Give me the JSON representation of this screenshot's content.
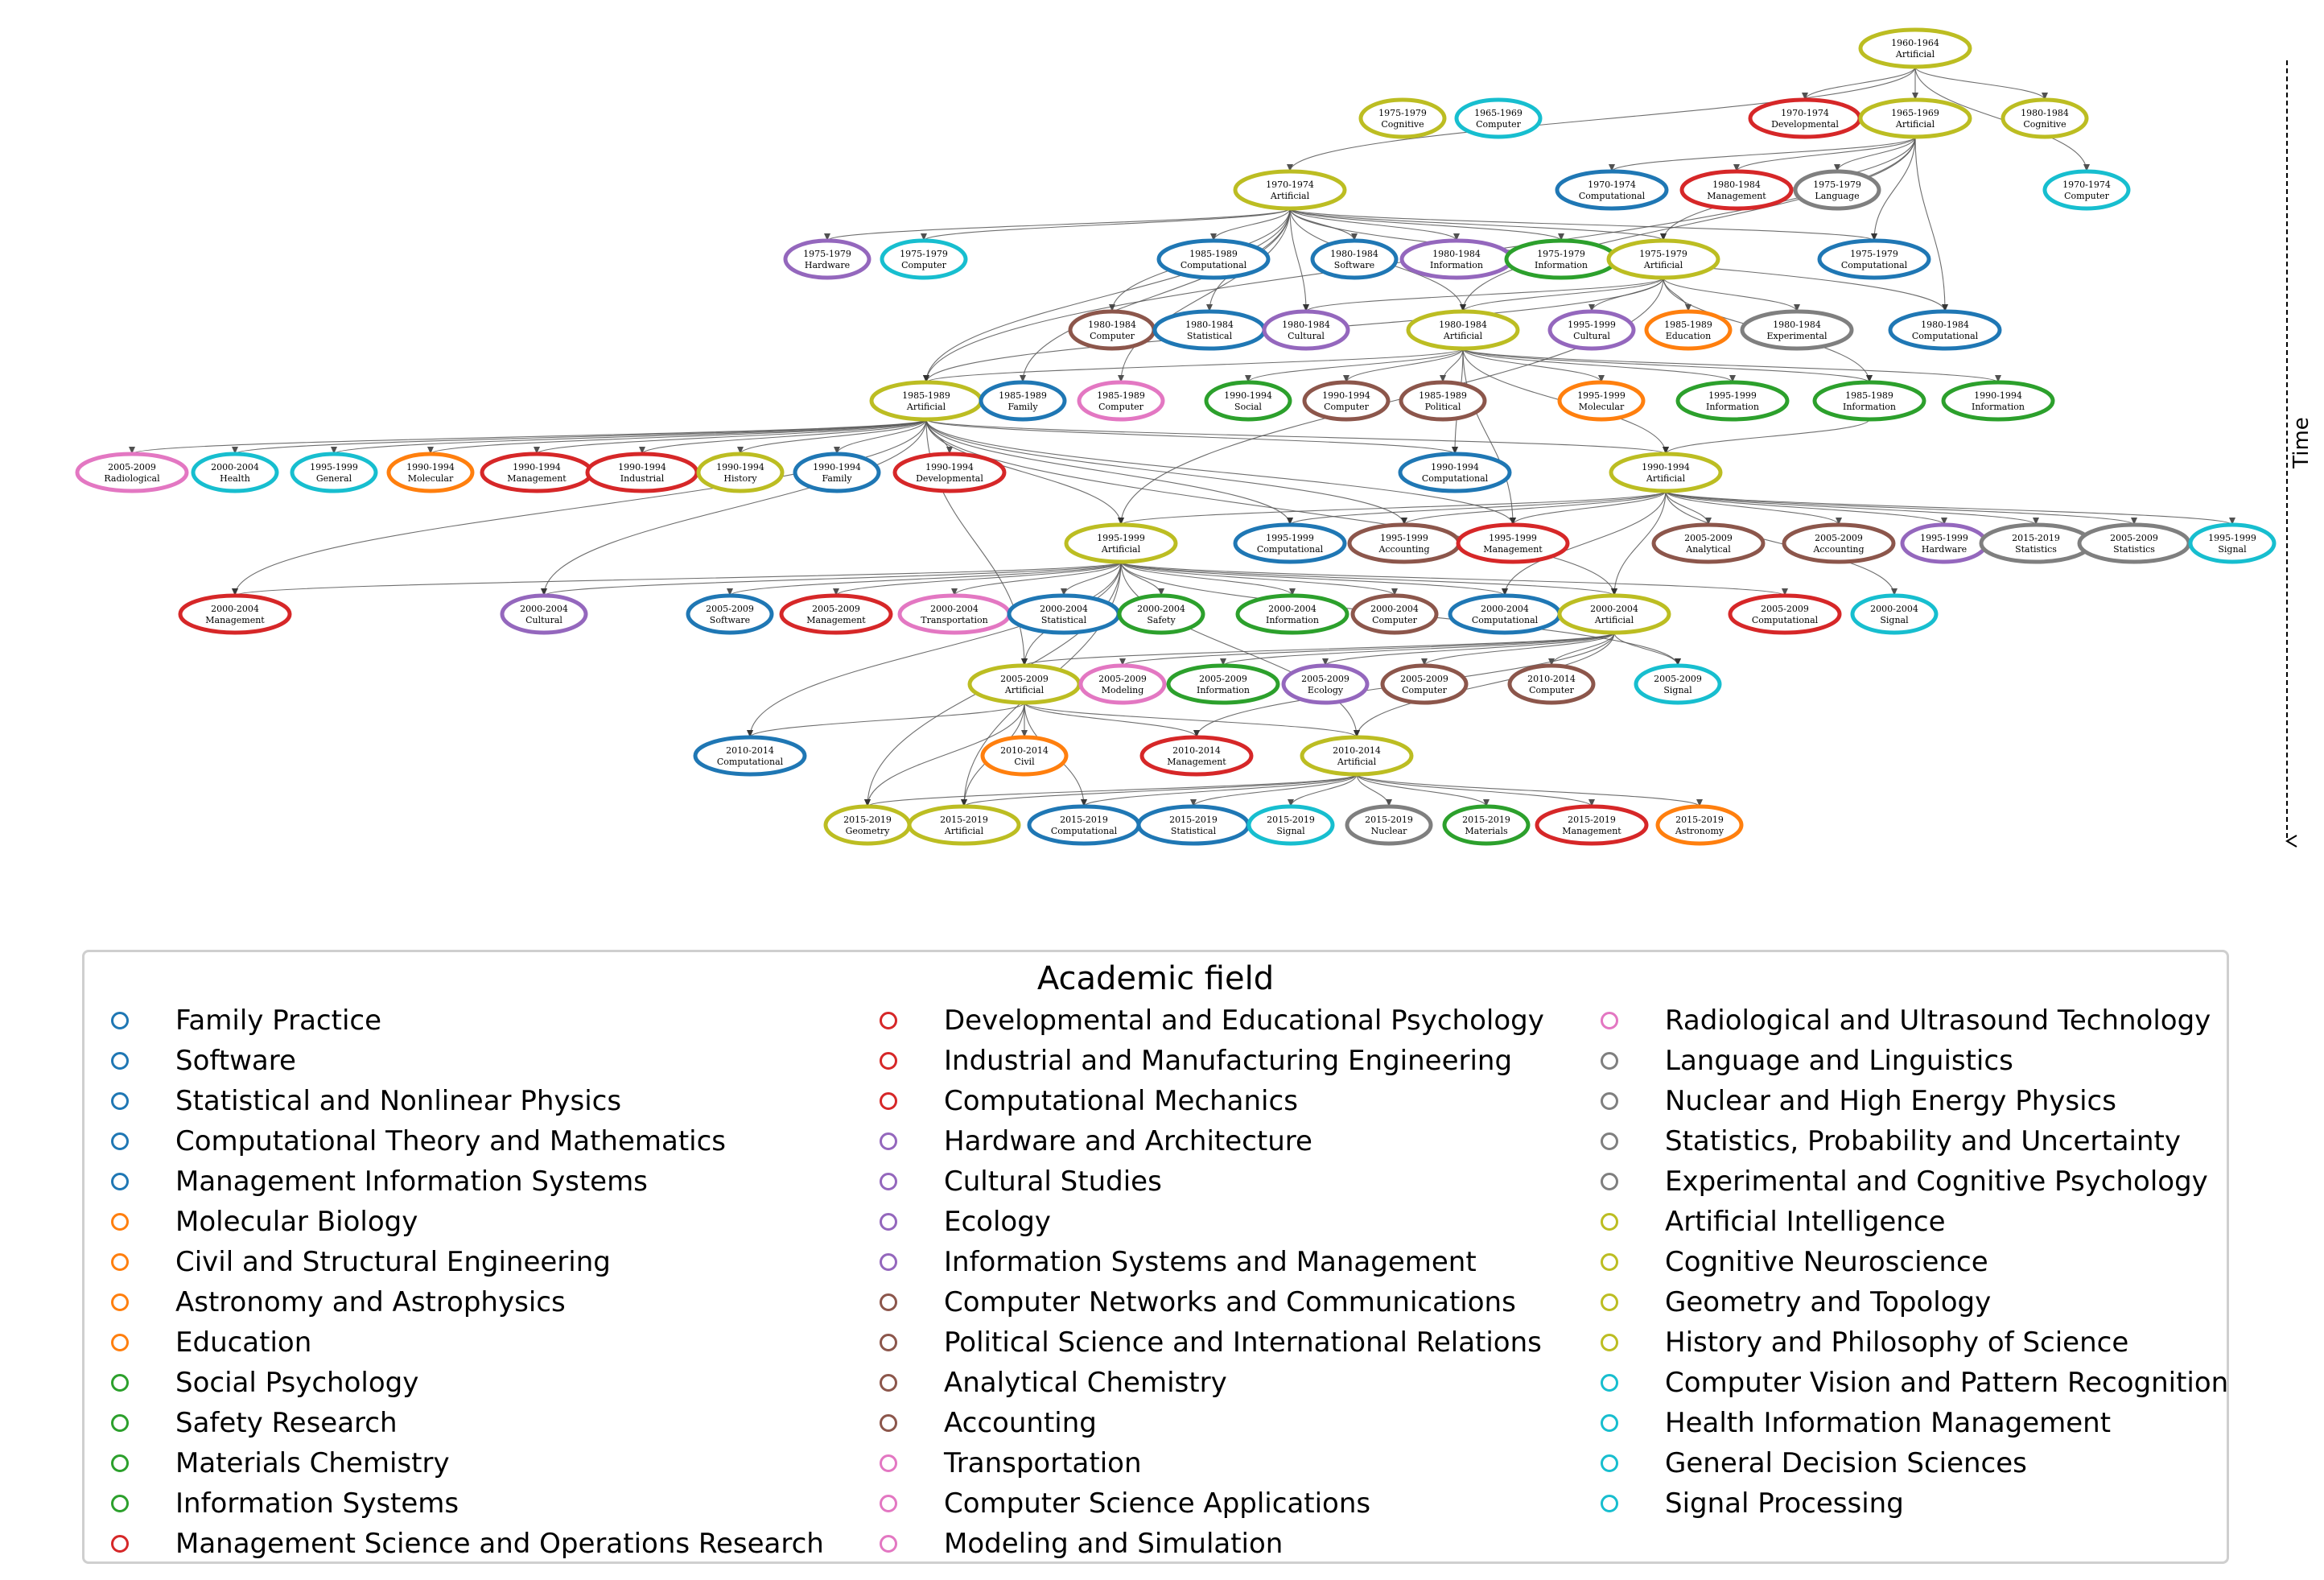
{
  "colors": {
    "blue": "#1f77b4",
    "orange": "#ff7f0e",
    "green": "#2ca02c",
    "red": "#d62728",
    "purple": "#9467bd",
    "brown": "#8c564b",
    "pink": "#e377c2",
    "gray": "#7f7f7f",
    "olive": "#bcbd22",
    "cyan": "#17becf",
    "edge": "#555555"
  },
  "time_axis_label": "Time",
  "nodes": [
    {
      "id": "n1",
      "period": "1960-1964",
      "field": "Artificial",
      "color": "olive"
    },
    {
      "id": "n2",
      "period": "1975-1979",
      "field": "Cognitive",
      "color": "olive"
    },
    {
      "id": "n3",
      "period": "1965-1969",
      "field": "Computer",
      "color": "cyan"
    },
    {
      "id": "n4",
      "period": "1970-1974",
      "field": "Developmental",
      "color": "red"
    },
    {
      "id": "n5",
      "period": "1965-1969",
      "field": "Artificial",
      "color": "olive"
    },
    {
      "id": "n6",
      "period": "1980-1984",
      "field": "Cognitive",
      "color": "olive"
    },
    {
      "id": "n7",
      "period": "1970-1974",
      "field": "Artificial",
      "color": "olive"
    },
    {
      "id": "n8",
      "period": "1970-1974",
      "field": "Computational",
      "color": "blue"
    },
    {
      "id": "n9",
      "period": "1980-1984",
      "field": "Management",
      "color": "red"
    },
    {
      "id": "n10",
      "period": "1975-1979",
      "field": "Language",
      "color": "gray"
    },
    {
      "id": "n11",
      "period": "1970-1974",
      "field": "Computer",
      "color": "cyan"
    },
    {
      "id": "n12",
      "period": "1975-1979",
      "field": "Hardware",
      "color": "purple"
    },
    {
      "id": "n13",
      "period": "1975-1979",
      "field": "Computer",
      "color": "cyan"
    },
    {
      "id": "n14",
      "period": "1985-1989",
      "field": "Computational",
      "color": "blue"
    },
    {
      "id": "n15",
      "period": "1980-1984",
      "field": "Software",
      "color": "blue"
    },
    {
      "id": "n16",
      "period": "1980-1984",
      "field": "Information",
      "color": "purple"
    },
    {
      "id": "n17",
      "period": "1975-1979",
      "field": "Information",
      "color": "green"
    },
    {
      "id": "n18",
      "period": "1975-1979",
      "field": "Artificial",
      "color": "olive"
    },
    {
      "id": "n19",
      "period": "1975-1979",
      "field": "Computational",
      "color": "blue"
    },
    {
      "id": "n20",
      "period": "1980-1984",
      "field": "Computer",
      "color": "brown"
    },
    {
      "id": "n21",
      "period": "1980-1984",
      "field": "Statistical",
      "color": "blue"
    },
    {
      "id": "n22",
      "period": "1980-1984",
      "field": "Cultural",
      "color": "purple"
    },
    {
      "id": "n23",
      "period": "1980-1984",
      "field": "Artificial",
      "color": "olive"
    },
    {
      "id": "n24",
      "period": "1995-1999",
      "field": "Cultural",
      "color": "purple"
    },
    {
      "id": "n25",
      "period": "1985-1989",
      "field": "Education",
      "color": "orange"
    },
    {
      "id": "n26",
      "period": "1980-1984",
      "field": "Experimental",
      "color": "gray"
    },
    {
      "id": "n27",
      "period": "1980-1984",
      "field": "Computational",
      "color": "blue"
    },
    {
      "id": "n28",
      "period": "1985-1989",
      "field": "Artificial",
      "color": "olive"
    },
    {
      "id": "n29",
      "period": "1985-1989",
      "field": "Family",
      "color": "blue"
    },
    {
      "id": "n30",
      "period": "1985-1989",
      "field": "Computer",
      "color": "pink"
    },
    {
      "id": "n31",
      "period": "1990-1994",
      "field": "Social",
      "color": "green"
    },
    {
      "id": "n32",
      "period": "1990-1994",
      "field": "Computer",
      "color": "brown"
    },
    {
      "id": "n33",
      "period": "1985-1989",
      "field": "Political",
      "color": "brown"
    },
    {
      "id": "n34",
      "period": "1995-1999",
      "field": "Molecular",
      "color": "orange"
    },
    {
      "id": "n35",
      "period": "1995-1999",
      "field": "Information",
      "color": "green"
    },
    {
      "id": "n36",
      "period": "1985-1989",
      "field": "Information",
      "color": "green"
    },
    {
      "id": "n37",
      "period": "1990-1994",
      "field": "Information",
      "color": "green"
    },
    {
      "id": "n38",
      "period": "2005-2009",
      "field": "Radiological",
      "color": "pink"
    },
    {
      "id": "n39",
      "period": "2000-2004",
      "field": "Health",
      "color": "cyan"
    },
    {
      "id": "n40",
      "period": "1995-1999",
      "field": "General",
      "color": "cyan"
    },
    {
      "id": "n41",
      "period": "1990-1994",
      "field": "Molecular",
      "color": "orange"
    },
    {
      "id": "n42",
      "period": "1990-1994",
      "field": "Management",
      "color": "red"
    },
    {
      "id": "n43",
      "period": "1990-1994",
      "field": "Industrial",
      "color": "red"
    },
    {
      "id": "n44",
      "period": "1990-1994",
      "field": "History",
      "color": "olive"
    },
    {
      "id": "n45",
      "period": "1990-1994",
      "field": "Family",
      "color": "blue"
    },
    {
      "id": "n46",
      "period": "1990-1994",
      "field": "Developmental",
      "color": "red"
    },
    {
      "id": "n47",
      "period": "1990-1994",
      "field": "Computational",
      "color": "blue"
    },
    {
      "id": "n48",
      "period": "1990-1994",
      "field": "Artificial",
      "color": "olive"
    },
    {
      "id": "n49",
      "period": "1995-1999",
      "field": "Artificial",
      "color": "olive"
    },
    {
      "id": "n50",
      "period": "1995-1999",
      "field": "Computational",
      "color": "blue"
    },
    {
      "id": "n51",
      "period": "1995-1999",
      "field": "Accounting",
      "color": "brown"
    },
    {
      "id": "n52",
      "period": "1995-1999",
      "field": "Management",
      "color": "red"
    },
    {
      "id": "n53",
      "period": "2005-2009",
      "field": "Analytical",
      "color": "brown"
    },
    {
      "id": "n54",
      "period": "2005-2009",
      "field": "Accounting",
      "color": "brown"
    },
    {
      "id": "n55",
      "period": "1995-1999",
      "field": "Hardware",
      "color": "purple"
    },
    {
      "id": "n56",
      "period": "2015-2019",
      "field": "Statistics",
      "color": "gray"
    },
    {
      "id": "n57",
      "period": "2005-2009",
      "field": "Statistics",
      "color": "gray"
    },
    {
      "id": "n58",
      "period": "1995-1999",
      "field": "Signal",
      "color": "cyan"
    },
    {
      "id": "n59",
      "period": "2000-2004",
      "field": "Management",
      "color": "red"
    },
    {
      "id": "n60",
      "period": "2000-2004",
      "field": "Cultural",
      "color": "purple"
    },
    {
      "id": "n61",
      "period": "2005-2009",
      "field": "Software",
      "color": "blue"
    },
    {
      "id": "n62",
      "period": "2005-2009",
      "field": "Management",
      "color": "red"
    },
    {
      "id": "n63",
      "period": "2000-2004",
      "field": "Transportation",
      "color": "pink"
    },
    {
      "id": "n64",
      "period": "2000-2004",
      "field": "Statistical",
      "color": "blue"
    },
    {
      "id": "n65",
      "period": "2000-2004",
      "field": "Safety",
      "color": "green"
    },
    {
      "id": "n66",
      "period": "2000-2004",
      "field": "Information",
      "color": "green"
    },
    {
      "id": "n67",
      "period": "2000-2004",
      "field": "Computer",
      "color": "brown"
    },
    {
      "id": "n68",
      "period": "2000-2004",
      "field": "Computational",
      "color": "blue"
    },
    {
      "id": "n69",
      "period": "2000-2004",
      "field": "Artificial",
      "color": "olive"
    },
    {
      "id": "n70",
      "period": "2005-2009",
      "field": "Computational",
      "color": "red"
    },
    {
      "id": "n71",
      "period": "2000-2004",
      "field": "Signal",
      "color": "cyan"
    },
    {
      "id": "n72",
      "period": "2005-2009",
      "field": "Artificial",
      "color": "olive"
    },
    {
      "id": "n73",
      "period": "2005-2009",
      "field": "Modeling",
      "color": "pink"
    },
    {
      "id": "n74",
      "period": "2005-2009",
      "field": "Information",
      "color": "green"
    },
    {
      "id": "n75",
      "period": "2005-2009",
      "field": "Ecology",
      "color": "purple"
    },
    {
      "id": "n76",
      "period": "2005-2009",
      "field": "Computer",
      "color": "brown"
    },
    {
      "id": "n77",
      "period": "2010-2014",
      "field": "Computer",
      "color": "brown"
    },
    {
      "id": "n78",
      "period": "2005-2009",
      "field": "Signal",
      "color": "cyan"
    },
    {
      "id": "n79",
      "period": "2010-2014",
      "field": "Computational",
      "color": "blue"
    },
    {
      "id": "n80",
      "period": "2010-2014",
      "field": "Civil",
      "color": "orange"
    },
    {
      "id": "n81",
      "period": "2010-2014",
      "field": "Management",
      "color": "red"
    },
    {
      "id": "n82",
      "period": "2010-2014",
      "field": "Artificial",
      "color": "olive"
    },
    {
      "id": "n83",
      "period": "2015-2019",
      "field": "Geometry",
      "color": "olive"
    },
    {
      "id": "n84",
      "period": "2015-2019",
      "field": "Artificial",
      "color": "olive"
    },
    {
      "id": "n85",
      "period": "2015-2019",
      "field": "Computational",
      "color": "blue"
    },
    {
      "id": "n86",
      "period": "2015-2019",
      "field": "Statistical",
      "color": "blue"
    },
    {
      "id": "n87",
      "period": "2015-2019",
      "field": "Signal",
      "color": "cyan"
    },
    {
      "id": "n88",
      "period": "2015-2019",
      "field": "Nuclear",
      "color": "gray"
    },
    {
      "id": "n89",
      "period": "2015-2019",
      "field": "Materials",
      "color": "green"
    },
    {
      "id": "n90",
      "period": "2015-2019",
      "field": "Management",
      "color": "red"
    },
    {
      "id": "n91",
      "period": "2015-2019",
      "field": "Astronomy",
      "color": "orange"
    }
  ],
  "edges": [
    [
      "n1",
      "n5"
    ],
    [
      "n1",
      "n4"
    ],
    [
      "n1",
      "n6"
    ],
    [
      "n1",
      "n7"
    ],
    [
      "n1",
      "n11"
    ],
    [
      "n5",
      "n8"
    ],
    [
      "n5",
      "n9"
    ],
    [
      "n5",
      "n10"
    ],
    [
      "n5",
      "n18"
    ],
    [
      "n5",
      "n19"
    ],
    [
      "n5",
      "n23"
    ],
    [
      "n5",
      "n27"
    ],
    [
      "n5",
      "n28"
    ],
    [
      "n7",
      "n12"
    ],
    [
      "n7",
      "n13"
    ],
    [
      "n7",
      "n14"
    ],
    [
      "n7",
      "n15"
    ],
    [
      "n7",
      "n16"
    ],
    [
      "n7",
      "n17"
    ],
    [
      "n7",
      "n18"
    ],
    [
      "n7",
      "n19"
    ],
    [
      "n7",
      "n20"
    ],
    [
      "n7",
      "n21"
    ],
    [
      "n7",
      "n22"
    ],
    [
      "n7",
      "n23"
    ],
    [
      "n7",
      "n27"
    ],
    [
      "n7",
      "n28"
    ],
    [
      "n7",
      "n29"
    ],
    [
      "n7",
      "n30"
    ],
    [
      "n18",
      "n22"
    ],
    [
      "n18",
      "n23"
    ],
    [
      "n18",
      "n24"
    ],
    [
      "n18",
      "n25"
    ],
    [
      "n18",
      "n26"
    ],
    [
      "n18",
      "n28"
    ],
    [
      "n18",
      "n36"
    ],
    [
      "n18",
      "n49"
    ],
    [
      "n23",
      "n28"
    ],
    [
      "n23",
      "n31"
    ],
    [
      "n23",
      "n32"
    ],
    [
      "n23",
      "n33"
    ],
    [
      "n23",
      "n34"
    ],
    [
      "n23",
      "n35"
    ],
    [
      "n23",
      "n36"
    ],
    [
      "n23",
      "n37"
    ],
    [
      "n23",
      "n47"
    ],
    [
      "n23",
      "n48"
    ],
    [
      "n23",
      "n52"
    ],
    [
      "n28",
      "n38"
    ],
    [
      "n28",
      "n39"
    ],
    [
      "n28",
      "n40"
    ],
    [
      "n28",
      "n41"
    ],
    [
      "n28",
      "n42"
    ],
    [
      "n28",
      "n43"
    ],
    [
      "n28",
      "n44"
    ],
    [
      "n28",
      "n45"
    ],
    [
      "n28",
      "n46"
    ],
    [
      "n28",
      "n47"
    ],
    [
      "n28",
      "n48"
    ],
    [
      "n28",
      "n49"
    ],
    [
      "n28",
      "n50"
    ],
    [
      "n28",
      "n51"
    ],
    [
      "n28",
      "n52"
    ],
    [
      "n28",
      "n59"
    ],
    [
      "n28",
      "n60"
    ],
    [
      "n28",
      "n69"
    ],
    [
      "n28",
      "n72"
    ],
    [
      "n36",
      "n48"
    ],
    [
      "n48",
      "n49"
    ],
    [
      "n48",
      "n50"
    ],
    [
      "n48",
      "n51"
    ],
    [
      "n48",
      "n52"
    ],
    [
      "n48",
      "n53"
    ],
    [
      "n48",
      "n54"
    ],
    [
      "n48",
      "n55"
    ],
    [
      "n48",
      "n56"
    ],
    [
      "n48",
      "n57"
    ],
    [
      "n48",
      "n58"
    ],
    [
      "n48",
      "n68"
    ],
    [
      "n48",
      "n69"
    ],
    [
      "n48",
      "n71"
    ],
    [
      "n49",
      "n59"
    ],
    [
      "n49",
      "n60"
    ],
    [
      "n49",
      "n61"
    ],
    [
      "n49",
      "n62"
    ],
    [
      "n49",
      "n63"
    ],
    [
      "n49",
      "n64"
    ],
    [
      "n49",
      "n65"
    ],
    [
      "n49",
      "n66"
    ],
    [
      "n49",
      "n67"
    ],
    [
      "n49",
      "n68"
    ],
    [
      "n49",
      "n69"
    ],
    [
      "n49",
      "n70"
    ],
    [
      "n49",
      "n72"
    ],
    [
      "n49",
      "n78"
    ],
    [
      "n49",
      "n79"
    ],
    [
      "n49",
      "n82"
    ],
    [
      "n49",
      "n83"
    ],
    [
      "n49",
      "n84"
    ],
    [
      "n69",
      "n72"
    ],
    [
      "n69",
      "n73"
    ],
    [
      "n69",
      "n74"
    ],
    [
      "n69",
      "n75"
    ],
    [
      "n69",
      "n76"
    ],
    [
      "n69",
      "n77"
    ],
    [
      "n69",
      "n78"
    ],
    [
      "n69",
      "n81"
    ],
    [
      "n69",
      "n82"
    ],
    [
      "n72",
      "n79"
    ],
    [
      "n72",
      "n80"
    ],
    [
      "n72",
      "n81"
    ],
    [
      "n72",
      "n82"
    ],
    [
      "n72",
      "n83"
    ],
    [
      "n72",
      "n84"
    ],
    [
      "n72",
      "n85"
    ],
    [
      "n82",
      "n83"
    ],
    [
      "n82",
      "n84"
    ],
    [
      "n82",
      "n85"
    ],
    [
      "n82",
      "n86"
    ],
    [
      "n82",
      "n87"
    ],
    [
      "n82",
      "n88"
    ],
    [
      "n82",
      "n89"
    ],
    [
      "n82",
      "n90"
    ],
    [
      "n82",
      "n91"
    ]
  ],
  "legend": {
    "title": "Academic field",
    "columns": [
      [
        {
          "label": "Family Practice",
          "color": "blue"
        },
        {
          "label": "Software",
          "color": "blue"
        },
        {
          "label": "Statistical and Nonlinear Physics",
          "color": "blue"
        },
        {
          "label": "Computational Theory and Mathematics",
          "color": "blue"
        },
        {
          "label": "Management Information Systems",
          "color": "blue"
        },
        {
          "label": "Molecular Biology",
          "color": "orange"
        },
        {
          "label": "Civil and Structural Engineering",
          "color": "orange"
        },
        {
          "label": "Astronomy and Astrophysics",
          "color": "orange"
        },
        {
          "label": "Education",
          "color": "orange"
        },
        {
          "label": "Social Psychology",
          "color": "green"
        },
        {
          "label": "Safety Research",
          "color": "green"
        },
        {
          "label": "Materials Chemistry",
          "color": "green"
        },
        {
          "label": "Information Systems",
          "color": "green"
        },
        {
          "label": "Management Science and Operations Research",
          "color": "red"
        }
      ],
      [
        {
          "label": "Developmental and Educational Psychology",
          "color": "red"
        },
        {
          "label": "Industrial and Manufacturing Engineering",
          "color": "red"
        },
        {
          "label": "Computational Mechanics",
          "color": "red"
        },
        {
          "label": "Hardware and Architecture",
          "color": "purple"
        },
        {
          "label": "Cultural Studies",
          "color": "purple"
        },
        {
          "label": "Ecology",
          "color": "purple"
        },
        {
          "label": "Information Systems and Management",
          "color": "purple"
        },
        {
          "label": "Computer Networks and Communications",
          "color": "brown"
        },
        {
          "label": "Political Science and International Relations",
          "color": "brown"
        },
        {
          "label": "Analytical Chemistry",
          "color": "brown"
        },
        {
          "label": "Accounting",
          "color": "brown"
        },
        {
          "label": "Transportation",
          "color": "pink"
        },
        {
          "label": "Computer Science Applications",
          "color": "pink"
        },
        {
          "label": "Modeling and Simulation",
          "color": "pink"
        }
      ],
      [
        {
          "label": "Radiological and Ultrasound Technology",
          "color": "pink"
        },
        {
          "label": "Language and Linguistics",
          "color": "gray"
        },
        {
          "label": "Nuclear and High Energy Physics",
          "color": "gray"
        },
        {
          "label": "Statistics, Probability and Uncertainty",
          "color": "gray"
        },
        {
          "label": "Experimental and Cognitive Psychology",
          "color": "gray"
        },
        {
          "label": "Artificial Intelligence",
          "color": "olive"
        },
        {
          "label": "Cognitive Neuroscience",
          "color": "olive"
        },
        {
          "label": "Geometry and Topology",
          "color": "olive"
        },
        {
          "label": "History and Philosophy of Science",
          "color": "olive"
        },
        {
          "label": "Computer Vision and Pattern Recognition",
          "color": "cyan"
        },
        {
          "label": "Health Information Management",
          "color": "cyan"
        },
        {
          "label": "General Decision Sciences",
          "color": "cyan"
        },
        {
          "label": "Signal Processing",
          "color": "cyan"
        }
      ]
    ]
  }
}
